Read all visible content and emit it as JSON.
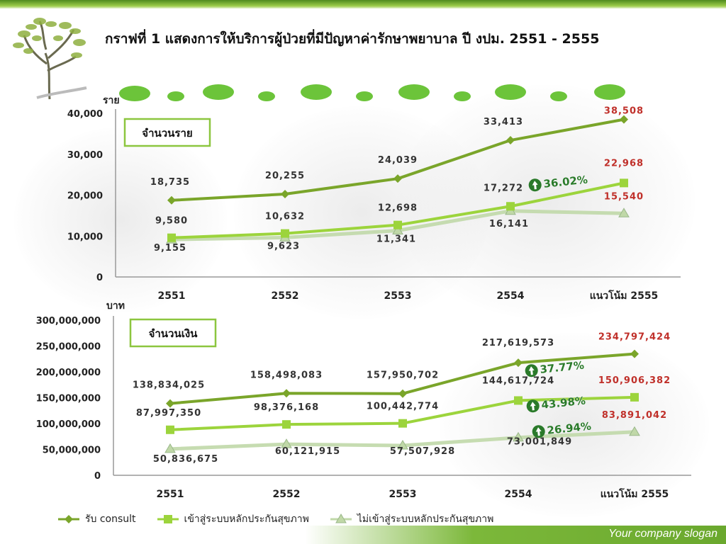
{
  "title": "กราฟที่ 1 แสดงการให้บริการผู้ป่วยที่มีปัญหาค่ารักษาพยาบาล ปี งปม. 2551 - 2555",
  "slogan": "Your company slogan",
  "colors": {
    "series1": "#7aa52a",
    "series2": "#9cd43c",
    "series3": "#c0d8a8",
    "highlight_red": "#c0302a",
    "pct_green": "#2a7a2a",
    "box_border": "#8cc63f"
  },
  "chart_data": [
    {
      "type": "line",
      "box_label": "จำนวนราย",
      "ylabel": "ราย",
      "categories": [
        "2551",
        "2552",
        "2553",
        "2554",
        "แนวโน้ม 2555"
      ],
      "ylim": [
        0,
        40000
      ],
      "yticks": [
        "0",
        "10,000",
        "20,000",
        "30,000",
        "40,000"
      ],
      "ytick_values": [
        0,
        10000,
        20000,
        30000,
        40000
      ],
      "series": [
        {
          "name": "รับ consult",
          "values": [
            18735,
            20255,
            24039,
            33413,
            38508
          ],
          "labels": [
            "18,735",
            "20,255",
            "24,039",
            "33,413",
            "38,508"
          ],
          "marker": "diamond"
        },
        {
          "name": "เข้าสู่ระบบหลักประกันสุขภาพ",
          "values": [
            9580,
            10632,
            12698,
            17272,
            22968
          ],
          "labels": [
            "9,580",
            "10,632",
            "12,698",
            "17,272",
            "22,968"
          ],
          "marker": "square"
        },
        {
          "name": "ไม่เข้าสู่ระบบหลักประกันสุขภาพ",
          "values": [
            9155,
            9623,
            11341,
            16141,
            15540
          ],
          "labels": [
            "9,155",
            "9,623",
            "11,341",
            "16,141",
            "15,540"
          ],
          "marker": "triangle"
        }
      ],
      "annotations": [
        "36.02%"
      ]
    },
    {
      "type": "line",
      "box_label": "จำนวนเงิน",
      "ylabel": "บาท",
      "categories": [
        "2551",
        "2552",
        "2553",
        "2554",
        "แนวโน้ม 2555"
      ],
      "ylim": [
        0,
        300000000
      ],
      "yticks": [
        "0",
        "50,000,000",
        "100,000,000",
        "150,000,000",
        "200,000,000",
        "250,000,000",
        "300,000,000"
      ],
      "ytick_values": [
        0,
        50000000,
        100000000,
        150000000,
        200000000,
        250000000,
        300000000
      ],
      "series": [
        {
          "name": "รับ consult",
          "values": [
            138834025,
            158498083,
            157950702,
            217619573,
            234797424
          ],
          "labels": [
            "138,834,025",
            "158,498,083",
            "157,950,702",
            "217,619,573",
            "234,797,424"
          ],
          "marker": "diamond"
        },
        {
          "name": "เข้าสู่ระบบหลักประกันสุขภาพ",
          "values": [
            87997350,
            98376168,
            100442774,
            144617724,
            150906382
          ],
          "labels": [
            "87,997,350",
            "98,376,168",
            "100,442,774",
            "144,617,724",
            "150,906,382"
          ],
          "marker": "square"
        },
        {
          "name": "ไม่เข้าสู่ระบบหลักประกันสุขภาพ",
          "values": [
            50836675,
            60121915,
            57507928,
            73001849,
            83891042
          ],
          "labels": [
            "50,836,675",
            "60,121,915",
            "57,507,928",
            "73,001,849",
            "83,891,042"
          ],
          "marker": "triangle"
        }
      ],
      "annotations": [
        "37.77%",
        "43.98%",
        "26.94%"
      ]
    }
  ],
  "legend": [
    {
      "name": "รับ consult",
      "marker": "diamond"
    },
    {
      "name": "เข้าสู่ระบบหลักประกันสุขภาพ",
      "marker": "square"
    },
    {
      "name": "ไม่เข้าสู่ระบบหลักประกันสุขภาพ",
      "marker": "triangle"
    }
  ]
}
